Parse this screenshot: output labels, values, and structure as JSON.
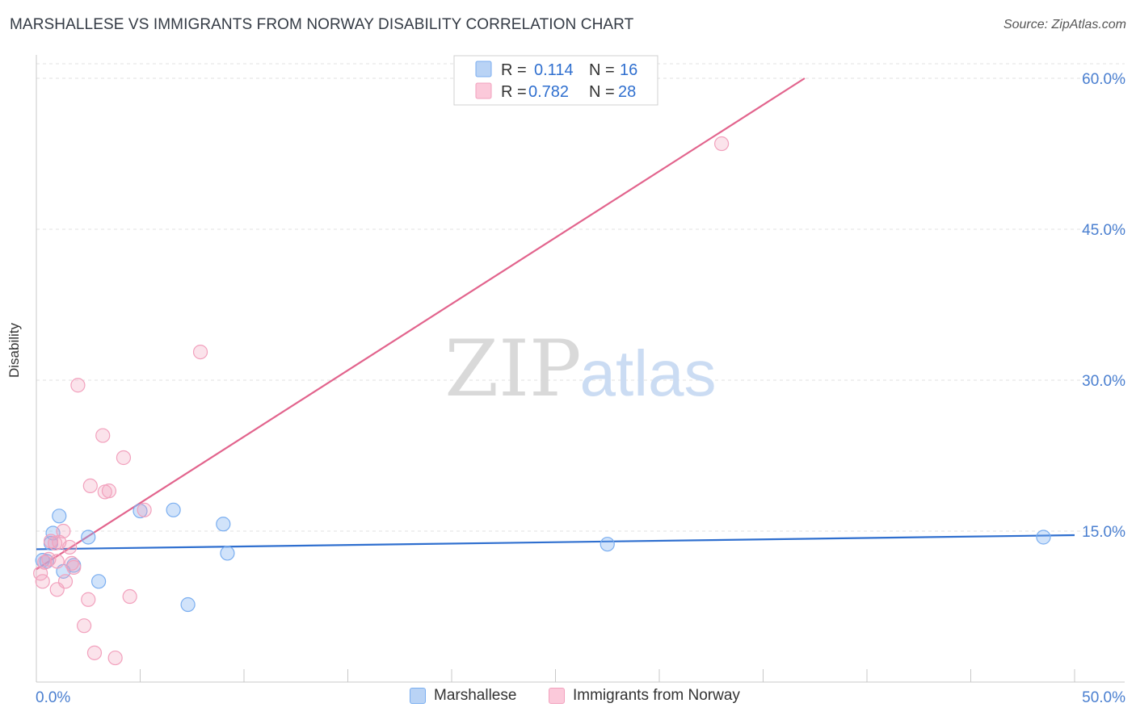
{
  "header": {
    "title": "MARSHALLESE VS IMMIGRANTS FROM NORWAY DISABILITY CORRELATION CHART",
    "source": "Source: ZipAtlas.com"
  },
  "watermark": {
    "zip": "ZIP",
    "atlas": "atlas"
  },
  "legend": {
    "rows": [
      {
        "r_label": "R =",
        "r_value": "0.114",
        "n_label": "N =",
        "n_value": "16"
      },
      {
        "r_label": "R =",
        "r_value": "0.782",
        "n_label": "N =",
        "n_value": "28"
      }
    ]
  },
  "bottom_legend": {
    "series1": "Marshallese",
    "series2": "Immigrants from Norway"
  },
  "chart_data": {
    "type": "scatter",
    "title": "MARSHALLESE VS IMMIGRANTS FROM NORWAY DISABILITY CORRELATION CHART",
    "xlabel": "",
    "ylabel": "Disability",
    "xlim": [
      0,
      50
    ],
    "ylim": [
      0,
      60
    ],
    "x_tick_labels": [
      "0.0%",
      "50.0%"
    ],
    "y_ticks": [
      15,
      30,
      45,
      60
    ],
    "y_tick_labels": [
      "15.0%",
      "30.0%",
      "45.0%",
      "60.0%"
    ],
    "grid": true,
    "legend_position": "top-center",
    "colors": {
      "marshallese": "#7aaef0",
      "norway": "#f2a1bd",
      "marshallese_line": "#2f6fcf",
      "norway_line": "#e2648d",
      "tick_text": "#4a7fd0"
    },
    "series": [
      {
        "name": "Marshallese",
        "r": 0.114,
        "n": 16,
        "points": [
          [
            0.3,
            12.1
          ],
          [
            0.5,
            12.0
          ],
          [
            0.7,
            13.8
          ],
          [
            0.8,
            14.8
          ],
          [
            1.1,
            16.5
          ],
          [
            1.3,
            11.0
          ],
          [
            1.8,
            11.6
          ],
          [
            2.5,
            14.4
          ],
          [
            3.0,
            10.0
          ],
          [
            5.0,
            17.0
          ],
          [
            6.6,
            17.1
          ],
          [
            7.3,
            7.7
          ],
          [
            9.0,
            15.7
          ],
          [
            9.2,
            12.8
          ],
          [
            27.5,
            13.7
          ],
          [
            48.5,
            14.4
          ]
        ],
        "trend": [
          [
            0,
            13.2
          ],
          [
            50,
            14.6
          ]
        ]
      },
      {
        "name": "Immigrants from Norway",
        "r": 0.782,
        "n": 28,
        "points": [
          [
            0.2,
            10.8
          ],
          [
            0.3,
            10.0
          ],
          [
            0.4,
            11.9
          ],
          [
            0.6,
            12.2
          ],
          [
            0.7,
            14.0
          ],
          [
            1.0,
            12.0
          ],
          [
            1.0,
            9.2
          ],
          [
            1.1,
            13.9
          ],
          [
            1.3,
            15.0
          ],
          [
            1.4,
            10.0
          ],
          [
            1.6,
            13.4
          ],
          [
            1.7,
            11.8
          ],
          [
            1.8,
            11.4
          ],
          [
            2.0,
            29.5
          ],
          [
            2.3,
            5.6
          ],
          [
            2.5,
            8.2
          ],
          [
            2.6,
            19.5
          ],
          [
            2.8,
            2.9
          ],
          [
            3.2,
            24.5
          ],
          [
            3.3,
            18.9
          ],
          [
            3.5,
            19.0
          ],
          [
            3.8,
            2.4
          ],
          [
            4.2,
            22.3
          ],
          [
            4.5,
            8.5
          ],
          [
            5.2,
            17.1
          ],
          [
            7.9,
            32.8
          ],
          [
            33.0,
            53.5
          ],
          [
            0.9,
            13.8
          ]
        ],
        "trend": [
          [
            0,
            11.2
          ],
          [
            37.0,
            60.0
          ]
        ]
      }
    ]
  }
}
